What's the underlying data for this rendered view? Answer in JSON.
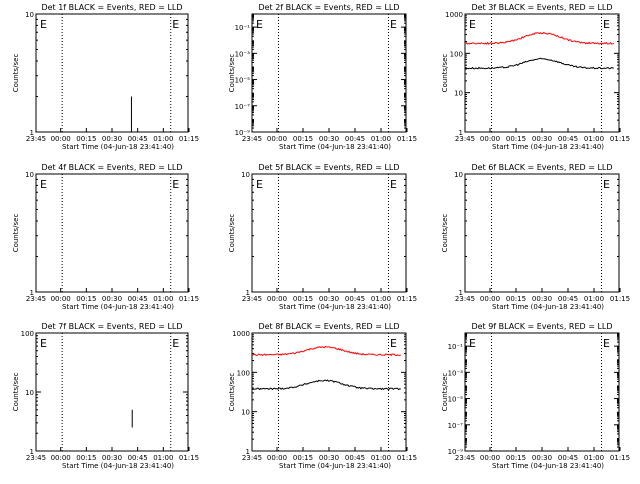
{
  "chart_data": [
    {
      "id": "det1f",
      "type": "line",
      "title": "Det 1f BLACK = Events, RED = LLD",
      "xlabel": "Start Time (04-Jun-18 23:41:40)",
      "ylabel": "Counts/sec",
      "yscale": "log",
      "ylim": [
        1,
        10
      ],
      "y_ticks": [
        {
          "v": 1,
          "label": "1"
        },
        {
          "v": 10,
          "label": "10"
        }
      ],
      "x_ticks": [
        "23:45",
        "00:00",
        "00:15",
        "00:30",
        "00:45",
        "01:00",
        "01:15"
      ],
      "markers": [
        {
          "label": "E",
          "pos": "start"
        },
        {
          "label": "E",
          "pos": "end"
        }
      ],
      "series": [
        {
          "color": "#000000",
          "kind": "spike",
          "x": 62.8,
          "y0": 1,
          "y1": 2.0
        }
      ]
    },
    {
      "id": "det2f",
      "type": "line",
      "title": "Det 2f BLACK = Events, RED = LLD",
      "xlabel": "Start Time (04-Jun-18 23:41:40)",
      "ylabel": "Counts/sec",
      "yscale": "log",
      "ylim": [
        1e-09,
        1
      ],
      "y_ticks": [
        {
          "v": 1e-09,
          "label": "10⁻⁹"
        },
        {
          "v": 1e-07,
          "label": "10⁻⁷"
        },
        {
          "v": 1e-05,
          "label": "10⁻⁵"
        },
        {
          "v": 0.001,
          "label": "10⁻³"
        },
        {
          "v": 0.1,
          "label": "10⁻¹"
        }
      ],
      "x_ticks": [
        "23:45",
        "00:00",
        "00:15",
        "00:30",
        "00:45",
        "01:00",
        "01:15"
      ],
      "markers": [
        {
          "label": "E",
          "pos": "start"
        },
        {
          "label": "E",
          "pos": "end"
        }
      ],
      "series": []
    },
    {
      "id": "det3f",
      "type": "line",
      "title": "Det 3f BLACK = Events, RED = LLD",
      "xlabel": "Start Time (04-Jun-18 23:41:40)",
      "ylabel": "Counts/sec",
      "yscale": "log",
      "ylim": [
        1,
        1000
      ],
      "y_ticks": [
        {
          "v": 1,
          "label": "1"
        },
        {
          "v": 10,
          "label": "10"
        },
        {
          "v": 100,
          "label": "100"
        },
        {
          "v": 1000,
          "label": "1000"
        }
      ],
      "x_ticks": [
        "23:45",
        "00:00",
        "00:15",
        "00:30",
        "00:45",
        "01:00",
        "01:15"
      ],
      "markers": [
        {
          "label": "E",
          "pos": "start"
        },
        {
          "label": "E",
          "pos": "end"
        }
      ],
      "series": [
        {
          "name": "RED = LLD",
          "color": "#ff0000",
          "kind": "trace",
          "base": 180,
          "peak": 330,
          "peak_x": 50,
          "peak_w": 15,
          "x0": 0,
          "x1": 97
        },
        {
          "name": "BLACK = Events",
          "color": "#000000",
          "kind": "trace",
          "base": 42,
          "peak": 72,
          "peak_x": 50,
          "peak_w": 15,
          "x0": 0,
          "x1": 97
        }
      ]
    },
    {
      "id": "det4f",
      "type": "line",
      "title": "Det 4f BLACK = Events, RED = LLD",
      "xlabel": "Start Time (04-Jun-18 23:41:40)",
      "ylabel": "Counts/sec",
      "yscale": "log",
      "ylim": [
        1,
        10
      ],
      "y_ticks": [
        {
          "v": 1,
          "label": "1"
        },
        {
          "v": 10,
          "label": "10"
        }
      ],
      "x_ticks": [
        "23:45",
        "00:00",
        "00:15",
        "00:30",
        "00:45",
        "01:00",
        "01:15"
      ],
      "markers": [
        {
          "label": "E",
          "pos": "start"
        },
        {
          "label": "E",
          "pos": "end"
        }
      ],
      "series": []
    },
    {
      "id": "det5f",
      "type": "line",
      "title": "Det 5f BLACK = Events, RED = LLD",
      "xlabel": "Start Time (04-Jun-18 23:41:40)",
      "ylabel": "Counts/sec",
      "yscale": "log",
      "ylim": [
        1,
        10
      ],
      "y_ticks": [
        {
          "v": 1,
          "label": "1"
        },
        {
          "v": 10,
          "label": "10"
        }
      ],
      "x_ticks": [
        "23:45",
        "00:00",
        "00:15",
        "00:30",
        "00:45",
        "01:00",
        "01:15"
      ],
      "markers": [
        {
          "label": "E",
          "pos": "start"
        },
        {
          "label": "E",
          "pos": "end"
        }
      ],
      "series": []
    },
    {
      "id": "det6f",
      "type": "line",
      "title": "Det 6f BLACK = Events, RED = LLD",
      "xlabel": "Start Time (04-Jun-18 23:41:40)",
      "ylabel": "Counts/sec",
      "yscale": "log",
      "ylim": [
        1,
        10
      ],
      "y_ticks": [
        {
          "v": 1,
          "label": "1"
        },
        {
          "v": 10,
          "label": "10"
        }
      ],
      "x_ticks": [
        "23:45",
        "00:00",
        "00:15",
        "00:30",
        "00:45",
        "01:00",
        "01:15"
      ],
      "markers": [
        {
          "label": "E",
          "pos": "end"
        }
      ],
      "series": []
    },
    {
      "id": "det7f",
      "type": "line",
      "title": "Det 7f BLACK = Events, RED = LLD",
      "xlabel": "Start Time (04-Jun-18 23:41:40)",
      "ylabel": "Counts/sec",
      "yscale": "log",
      "ylim": [
        1,
        100
      ],
      "y_ticks": [
        {
          "v": 1,
          "label": "1"
        },
        {
          "v": 10,
          "label": "10"
        },
        {
          "v": 100,
          "label": "100"
        }
      ],
      "x_ticks": [
        "23:45",
        "00:00",
        "00:15",
        "00:30",
        "00:45",
        "01:00",
        "01:15"
      ],
      "markers": [
        {
          "label": "E",
          "pos": "start"
        },
        {
          "label": "E",
          "pos": "end"
        }
      ],
      "series": [
        {
          "color": "#000000",
          "kind": "spike",
          "x": 63.3,
          "y0": 2.5,
          "y1": 5.0
        }
      ]
    },
    {
      "id": "det8f",
      "type": "line",
      "title": "Det 8f BLACK = Events, RED = LLD",
      "xlabel": "Start Time (04-Jun-18 23:41:40)",
      "ylabel": "Counts/sec",
      "yscale": "log",
      "ylim": [
        1,
        1000
      ],
      "y_ticks": [
        {
          "v": 1,
          "label": "1"
        },
        {
          "v": 10,
          "label": "10"
        },
        {
          "v": 100,
          "label": "100"
        },
        {
          "v": 1000,
          "label": "1000"
        }
      ],
      "x_ticks": [
        "23:45",
        "00:00",
        "00:15",
        "00:30",
        "00:45",
        "01:00",
        "01:15"
      ],
      "markers": [
        {
          "label": "E",
          "pos": "end"
        }
      ],
      "series": [
        {
          "name": "RED = LLD",
          "color": "#ff0000",
          "kind": "trace",
          "base": 280,
          "peak": 440,
          "peak_x": 47,
          "peak_w": 15,
          "x0": 0,
          "x1": 97
        },
        {
          "name": "BLACK = Events",
          "color": "#000000",
          "kind": "trace",
          "base": 38,
          "peak": 62,
          "peak_x": 47,
          "peak_w": 15,
          "x0": 0,
          "x1": 97
        }
      ]
    },
    {
      "id": "det9f",
      "type": "line",
      "title": "Det 9f BLACK = Events, RED = LLD",
      "xlabel": "Start Time (04-Jun-18 23:41:40)",
      "ylabel": "Counts/sec",
      "yscale": "log",
      "ylim": [
        1e-09,
        1
      ],
      "y_ticks": [
        {
          "v": 1e-09,
          "label": "10⁻⁹"
        },
        {
          "v": 1e-07,
          "label": "10⁻⁷"
        },
        {
          "v": 1e-05,
          "label": "10⁻⁵"
        },
        {
          "v": 0.001,
          "label": "10⁻³"
        },
        {
          "v": 0.1,
          "label": "10⁻¹"
        }
      ],
      "x_ticks": [
        "23:45",
        "00:00",
        "00:15",
        "00:30",
        "00:45",
        "01:00",
        "01:15"
      ],
      "markers": [
        {
          "label": "E",
          "pos": "start"
        },
        {
          "label": "E",
          "pos": "end"
        }
      ],
      "series": []
    }
  ]
}
